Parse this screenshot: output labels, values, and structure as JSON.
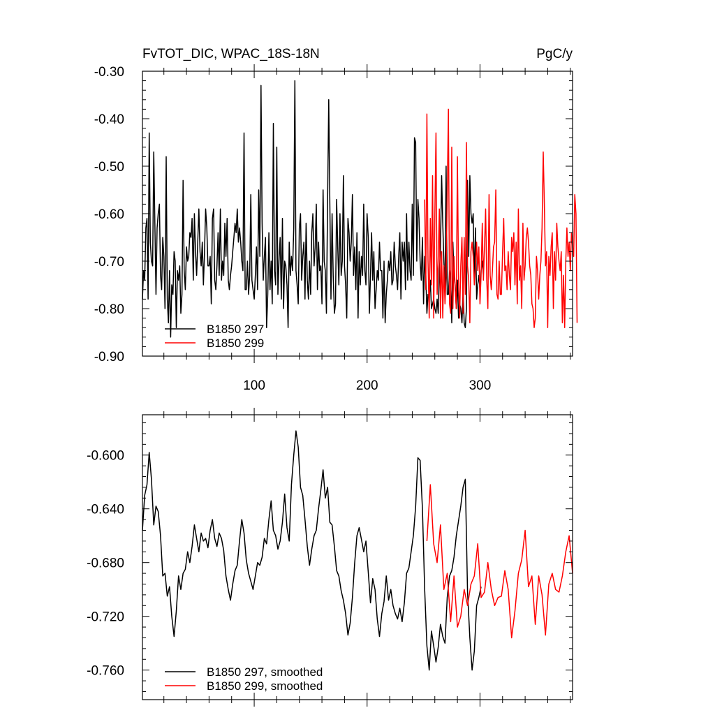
{
  "chart_data": [
    {
      "type": "line",
      "title": "FvTOT_DIC, WPAC_18S-18N",
      "units": "PgC/y",
      "xlabel": "",
      "ylabel": "",
      "xlim": [
        1,
        382
      ],
      "ylim": [
        -0.9,
        -0.3
      ],
      "xticks": [
        100,
        200,
        300
      ],
      "xtick_labels": [
        "100",
        "200",
        "300"
      ],
      "yticks": [
        -0.9,
        -0.8,
        -0.7,
        -0.6,
        -0.5,
        -0.4,
        -0.3
      ],
      "ytick_labels": [
        "-0.90",
        "-0.80",
        "-0.70",
        "-0.60",
        "-0.50",
        "-0.40",
        "-0.30"
      ],
      "grid": false,
      "legend_position": "bottom-left",
      "series": [
        {
          "name": "B1850 297",
          "color": "#000000",
          "x_start": 1,
          "values": [
            -0.78,
            -0.72,
            -0.74,
            -0.63,
            -0.61,
            -0.78,
            -0.43,
            -0.66,
            -0.7,
            -0.71,
            -0.47,
            -0.62,
            -0.77,
            -0.63,
            -0.6,
            -0.58,
            -0.73,
            -0.76,
            -0.65,
            -0.69,
            -0.8,
            -0.48,
            -0.78,
            -0.83,
            -0.72,
            -0.86,
            -0.75,
            -0.77,
            -0.68,
            -0.7,
            -0.84,
            -0.72,
            -0.74,
            -0.71,
            -0.81,
            -0.77,
            -0.53,
            -0.72,
            -0.76,
            -0.67,
            -0.7,
            -0.69,
            -0.64,
            -0.65,
            -0.61,
            -0.74,
            -0.6,
            -0.68,
            -0.73,
            -0.66,
            -0.59,
            -0.68,
            -0.71,
            -0.66,
            -0.75,
            -0.68,
            -0.59,
            -0.63,
            -0.71,
            -0.71,
            -0.69,
            -0.79,
            -0.61,
            -0.59,
            -0.74,
            -0.76,
            -0.71,
            -0.64,
            -0.73,
            -0.59,
            -0.74,
            -0.7,
            -0.73,
            -0.62,
            -0.69,
            -0.61,
            -0.74,
            -0.76,
            -0.73,
            -0.71,
            -0.68,
            -0.65,
            -0.62,
            -0.64,
            -0.59,
            -0.66,
            -0.63,
            -0.66,
            -0.7,
            -0.72,
            -0.43,
            -0.76,
            -0.76,
            -0.7,
            -0.77,
            -0.73,
            -0.56,
            -0.74,
            -0.76,
            -0.78,
            -0.73,
            -0.67,
            -0.76,
            -0.55,
            -0.69,
            -0.33,
            -0.62,
            -0.74,
            -0.69,
            -0.65,
            -0.84,
            -0.77,
            -0.64,
            -0.76,
            -0.7,
            -0.79,
            -0.41,
            -0.72,
            -0.75,
            -0.46,
            -0.77,
            -0.7,
            -0.65,
            -0.78,
            -0.61,
            -0.8,
            -0.7,
            -0.71,
            -0.75,
            -0.84,
            -0.66,
            -0.73,
            -0.69,
            -0.72,
            -0.63,
            -0.32,
            -0.72,
            -0.75,
            -0.79,
            -0.63,
            -0.6,
            -0.74,
            -0.69,
            -0.66,
            -0.78,
            -0.62,
            -0.74,
            -0.78,
            -0.7,
            -0.77,
            -0.64,
            -0.6,
            -0.71,
            -0.67,
            -0.58,
            -0.76,
            -0.66,
            -0.72,
            -0.71,
            -0.79,
            -0.55,
            -0.7,
            -0.72,
            -0.81,
            -0.57,
            -0.36,
            -0.58,
            -0.78,
            -0.6,
            -0.73,
            -0.81,
            -0.79,
            -0.57,
            -0.67,
            -0.75,
            -0.6,
            -0.73,
            -0.7,
            -0.52,
            -0.71,
            -0.75,
            -0.82,
            -0.61,
            -0.64,
            -0.7,
            -0.66,
            -0.56,
            -0.73,
            -0.67,
            -0.76,
            -0.64,
            -0.82,
            -0.68,
            -0.75,
            -0.69,
            -0.73,
            -0.58,
            -0.72,
            -0.75,
            -0.6,
            -0.65,
            -0.81,
            -0.73,
            -0.64,
            -0.74,
            -0.68,
            -0.8,
            -0.76,
            -0.72,
            -0.74,
            -0.66,
            -0.72,
            -0.72,
            -0.82,
            -0.7,
            -0.83,
            -0.77,
            -0.74,
            -0.7,
            -0.72,
            -0.68,
            -0.75,
            -0.74,
            -0.66,
            -0.71,
            -0.73,
            -0.76,
            -0.69,
            -0.64,
            -0.78,
            -0.66,
            -0.7,
            -0.66,
            -0.76,
            -0.6,
            -0.74,
            -0.66,
            -0.72,
            -0.74,
            -0.58,
            -0.73,
            -0.44,
            -0.45,
            -0.7,
            -0.57,
            -0.61,
            -0.7,
            -0.74,
            -0.65,
            -0.79,
            -0.69,
            -0.73,
            -0.81,
            -0.77,
            -0.78,
            -0.74,
            -0.8,
            -0.79,
            -0.78,
            -0.8,
            -0.81,
            -0.78,
            -0.81,
            -0.72,
            -0.68,
            -0.52,
            -0.62,
            -0.7,
            -0.76,
            -0.5,
            -0.77,
            -0.77,
            -0.72,
            -0.74,
            -0.83,
            -0.66,
            -0.73,
            -0.75,
            -0.8,
            -0.74,
            -0.82,
            -0.79,
            -0.8,
            -0.83,
            -0.76,
            -0.83,
            -0.84,
            -0.8,
            -0.53,
            -0.69,
            -0.52,
            -0.6,
            -0.62,
            -0.6,
            -0.74,
            -0.63,
            -0.78,
            -0.75,
            -0.73,
            -0.76,
            -0.72,
            -0.7,
            -0.73
          ]
        },
        {
          "name": "B1850 299",
          "color": "#ff0000",
          "x_start": 251,
          "values": [
            -0.57,
            -0.76,
            -0.39,
            -0.7,
            -0.82,
            -0.61,
            -0.75,
            -0.52,
            -0.82,
            -0.6,
            -0.43,
            -0.77,
            -0.7,
            -0.59,
            -0.82,
            -0.68,
            -0.82,
            -0.71,
            -0.79,
            -0.73,
            -0.56,
            -0.38,
            -0.79,
            -0.81,
            -0.46,
            -0.8,
            -0.69,
            -0.76,
            -0.8,
            -0.48,
            -0.74,
            -0.82,
            -0.71,
            -0.65,
            -0.81,
            -0.65,
            -0.77,
            -0.45,
            -0.71,
            -0.74,
            -0.83,
            -0.68,
            -0.66,
            -0.69,
            -0.75,
            -0.71,
            -0.66,
            -0.72,
            -0.67,
            -0.79,
            -0.73,
            -0.62,
            -0.74,
            -0.67,
            -0.59,
            -0.74,
            -0.8,
            -0.56,
            -0.73,
            -0.76,
            -0.72,
            -0.67,
            -0.66,
            -0.55,
            -0.77,
            -0.78,
            -0.7,
            -0.77,
            -0.77,
            -0.68,
            -0.61,
            -0.72,
            -0.71,
            -0.76,
            -0.68,
            -0.73,
            -0.76,
            -0.65,
            -0.68,
            -0.64,
            -0.75,
            -0.66,
            -0.79,
            -0.59,
            -0.74,
            -0.71,
            -0.8,
            -0.62,
            -0.74,
            -0.71,
            -0.65,
            -0.63,
            -0.66,
            -0.71,
            -0.73,
            -0.79,
            -0.8,
            -0.84,
            -0.82,
            -0.69,
            -0.72,
            -0.78,
            -0.73,
            -0.7,
            -0.63,
            -0.47,
            -0.58,
            -0.71,
            -0.68,
            -0.84,
            -0.69,
            -0.73,
            -0.67,
            -0.64,
            -0.8,
            -0.68,
            -0.74,
            -0.62,
            -0.67,
            -0.7,
            -0.72,
            -0.68,
            -0.83,
            -0.73,
            -0.84,
            -0.7,
            -0.63,
            -0.69,
            -0.66,
            -0.72,
            -0.64,
            -0.67,
            -0.69,
            -0.56,
            -0.6,
            -0.83
          ]
        }
      ]
    },
    {
      "type": "line",
      "title": "",
      "xlabel": "",
      "ylabel": "",
      "xlim": [
        1,
        382
      ],
      "ylim": [
        -0.782,
        -0.57
      ],
      "xticks": [
        100,
        200,
        300
      ],
      "xtick_labels": [
        "",
        "",
        ""
      ],
      "yticks": [
        -0.76,
        -0.72,
        -0.68,
        -0.64,
        -0.6
      ],
      "ytick_labels": [
        "-0.760",
        "-0.720",
        "-0.680",
        "-0.640",
        "-0.600"
      ],
      "grid": false,
      "legend_position": "bottom-left",
      "series": [
        {
          "name": "B1850 297, smoothed",
          "color": "#000000",
          "x": [
            1,
            3,
            5,
            7,
            9,
            11,
            13,
            15,
            17,
            19,
            21,
            23,
            25,
            27,
            29,
            31,
            33,
            35,
            37,
            39,
            41,
            43,
            45,
            47,
            49,
            51,
            53,
            55,
            57,
            59,
            61,
            63,
            65,
            67,
            69,
            71,
            73,
            75,
            77,
            79,
            81,
            83,
            85,
            87,
            89,
            91,
            93,
            95,
            97,
            99,
            101,
            103,
            105,
            107,
            109,
            111,
            113,
            115,
            117,
            119,
            121,
            123,
            125,
            127,
            129,
            131,
            133,
            135,
            137,
            139,
            141,
            143,
            145,
            147,
            149,
            151,
            153,
            155,
            157,
            159,
            161,
            163,
            165,
            167,
            169,
            171,
            173,
            175,
            177,
            179,
            181,
            183,
            185,
            187,
            189,
            191,
            193,
            195,
            197,
            199,
            201,
            203,
            205,
            207,
            209,
            211,
            213,
            215,
            217,
            219,
            221,
            223,
            225,
            227,
            229,
            231,
            233,
            235,
            237,
            239,
            241,
            243,
            245,
            247,
            249,
            251,
            253,
            255,
            257,
            259,
            261,
            263,
            265,
            267,
            269,
            271,
            273,
            275,
            277,
            279,
            281,
            283,
            285,
            287,
            289,
            291,
            293,
            295,
            297,
            299,
            301
          ],
          "values": [
            -0.656,
            -0.63,
            -0.622,
            -0.598,
            -0.618,
            -0.652,
            -0.638,
            -0.642,
            -0.66,
            -0.69,
            -0.688,
            -0.705,
            -0.698,
            -0.72,
            -0.735,
            -0.716,
            -0.69,
            -0.7,
            -0.688,
            -0.685,
            -0.672,
            -0.68,
            -0.668,
            -0.652,
            -0.662,
            -0.672,
            -0.658,
            -0.664,
            -0.662,
            -0.669,
            -0.656,
            -0.648,
            -0.662,
            -0.668,
            -0.658,
            -0.662,
            -0.671,
            -0.69,
            -0.7,
            -0.708,
            -0.696,
            -0.686,
            -0.682,
            -0.664,
            -0.648,
            -0.658,
            -0.678,
            -0.688,
            -0.694,
            -0.7,
            -0.69,
            -0.68,
            -0.682,
            -0.676,
            -0.662,
            -0.666,
            -0.648,
            -0.634,
            -0.656,
            -0.66,
            -0.67,
            -0.664,
            -0.65,
            -0.629,
            -0.654,
            -0.664,
            -0.622,
            -0.6,
            -0.582,
            -0.594,
            -0.624,
            -0.63,
            -0.648,
            -0.668,
            -0.682,
            -0.67,
            -0.66,
            -0.656,
            -0.64,
            -0.626,
            -0.611,
            -0.632,
            -0.624,
            -0.65,
            -0.652,
            -0.668,
            -0.686,
            -0.69,
            -0.701,
            -0.708,
            -0.718,
            -0.734,
            -0.725,
            -0.706,
            -0.68,
            -0.66,
            -0.654,
            -0.663,
            -0.672,
            -0.664,
            -0.687,
            -0.71,
            -0.692,
            -0.7,
            -0.722,
            -0.735,
            -0.718,
            -0.709,
            -0.69,
            -0.708,
            -0.7,
            -0.712,
            -0.718,
            -0.722,
            -0.714,
            -0.724,
            -0.71,
            -0.688,
            -0.684,
            -0.672,
            -0.66,
            -0.638,
            -0.602,
            -0.604,
            -0.64,
            -0.7,
            -0.742,
            -0.76,
            -0.731,
            -0.742,
            -0.754,
            -0.743,
            -0.726,
            -0.735,
            -0.74,
            -0.706,
            -0.69,
            -0.686,
            -0.676,
            -0.66,
            -0.649,
            -0.638,
            -0.624,
            -0.618,
            -0.702,
            -0.736,
            -0.76,
            -0.746,
            -0.712,
            -0.706,
            -0.698
          ]
        },
        {
          "name": "B1850 299, smoothed",
          "color": "#ff0000",
          "x": [
            253,
            256,
            259,
            262,
            265,
            268,
            271,
            274,
            277,
            280,
            283,
            286,
            289,
            292,
            295,
            298,
            301,
            304,
            307,
            310,
            313,
            316,
            319,
            322,
            325,
            328,
            331,
            334,
            337,
            340,
            343,
            346,
            349,
            352,
            355,
            358,
            361,
            364,
            367,
            370,
            373,
            376,
            379,
            382
          ],
          "values": [
            -0.664,
            -0.622,
            -0.666,
            -0.68,
            -0.652,
            -0.7,
            -0.688,
            -0.724,
            -0.69,
            -0.728,
            -0.72,
            -0.7,
            -0.712,
            -0.696,
            -0.69,
            -0.666,
            -0.706,
            -0.702,
            -0.68,
            -0.7,
            -0.712,
            -0.706,
            -0.705,
            -0.686,
            -0.7,
            -0.736,
            -0.716,
            -0.688,
            -0.678,
            -0.656,
            -0.698,
            -0.69,
            -0.726,
            -0.69,
            -0.704,
            -0.734,
            -0.696,
            -0.688,
            -0.7,
            -0.702,
            -0.69,
            -0.672,
            -0.66,
            -0.688
          ]
        }
      ]
    }
  ]
}
